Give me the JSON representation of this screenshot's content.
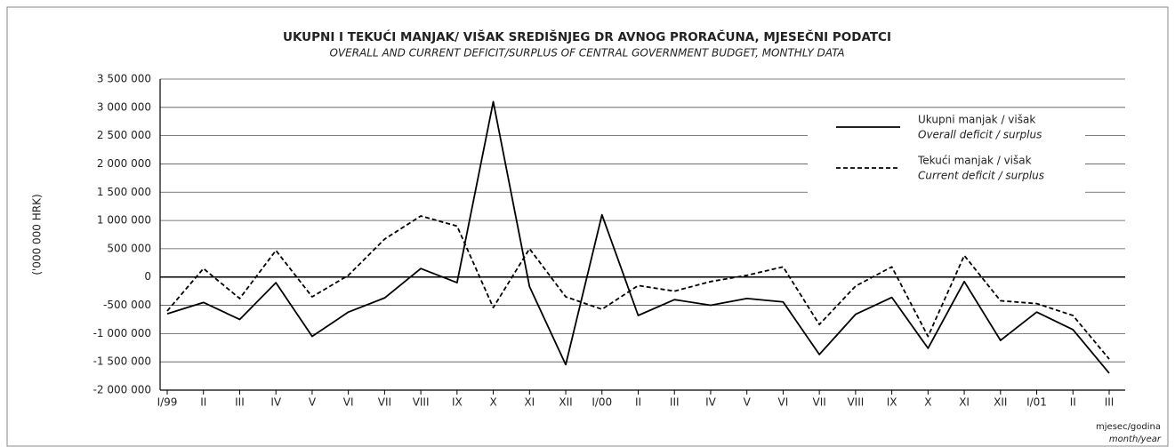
{
  "chart_data": {
    "type": "line",
    "title": "UKUPNI I TEKUĆI MANJAK/ VIŠAK SREDIŠNJEG DR  AVNOG PRORAČUNA, MJESEČNI PODATCI",
    "subtitle": "OVERALL AND CURRENT DEFICIT/SURPLUS OF CENTRAL GOVERNMENT BUDGET, MONTHLY DATA",
    "y_label": "('000 000 HRK)",
    "x_label": "mjesec/godina",
    "x_label_en": "month/year",
    "categories": [
      "I/99",
      "II",
      "III",
      "IV",
      "V",
      "VI",
      "VII",
      "VIII",
      "IX",
      "X",
      "XI",
      "XII",
      "I/00",
      "II",
      "III",
      "IV",
      "V",
      "VI",
      "VII",
      "VIII",
      "IX",
      "X",
      "XI",
      "XII",
      "I/01",
      "II",
      "III"
    ],
    "series": [
      {
        "name": "Ukupni manjak / višak",
        "name_en": "Overall deficit / surplus",
        "color": "#000000",
        "dash": false,
        "values": [
          -650000,
          -450000,
          -750000,
          -100000,
          -1050000,
          -620000,
          -370000,
          150000,
          -100000,
          3100000,
          -170000,
          -1550000,
          1100000,
          -680000,
          -400000,
          -500000,
          -380000,
          -440000,
          -1370000,
          -660000,
          -360000,
          -1260000,
          -80000,
          -1120000,
          -620000,
          -930000,
          -1700000
        ]
      },
      {
        "name": "Tekući manjak / višak",
        "name_en": "Current deficit / surplus",
        "color": "#000000",
        "dash": true,
        "values": [
          -600000,
          150000,
          -380000,
          470000,
          -350000,
          30000,
          670000,
          1080000,
          900000,
          -540000,
          500000,
          -350000,
          -570000,
          -150000,
          -250000,
          -80000,
          30000,
          180000,
          -840000,
          -160000,
          180000,
          -1050000,
          380000,
          -420000,
          -470000,
          -680000,
          -1450000
        ]
      }
    ],
    "ylim": [
      -2000000,
      3500000
    ],
    "yticks": [
      {
        "value": -2000000,
        "label": "-2 000 000"
      },
      {
        "value": -1500000,
        "label": "-1 500 000"
      },
      {
        "value": -1000000,
        "label": "-1 000 000"
      },
      {
        "value": -500000,
        "label": "-500 000"
      },
      0,
      {
        "value": 500000,
        "label": "500 000"
      },
      {
        "value": 1000000,
        "label": "1 000 000"
      },
      {
        "value": 1500000,
        "label": "1 500 000"
      },
      {
        "value": 2000000,
        "label": "2 000 000"
      },
      {
        "value": 2500000,
        "label": "2 500 000"
      },
      {
        "value": 3000000,
        "label": "3 000 000"
      },
      {
        "value": 3500000,
        "label": "3 500 000"
      }
    ],
    "grid": true
  }
}
